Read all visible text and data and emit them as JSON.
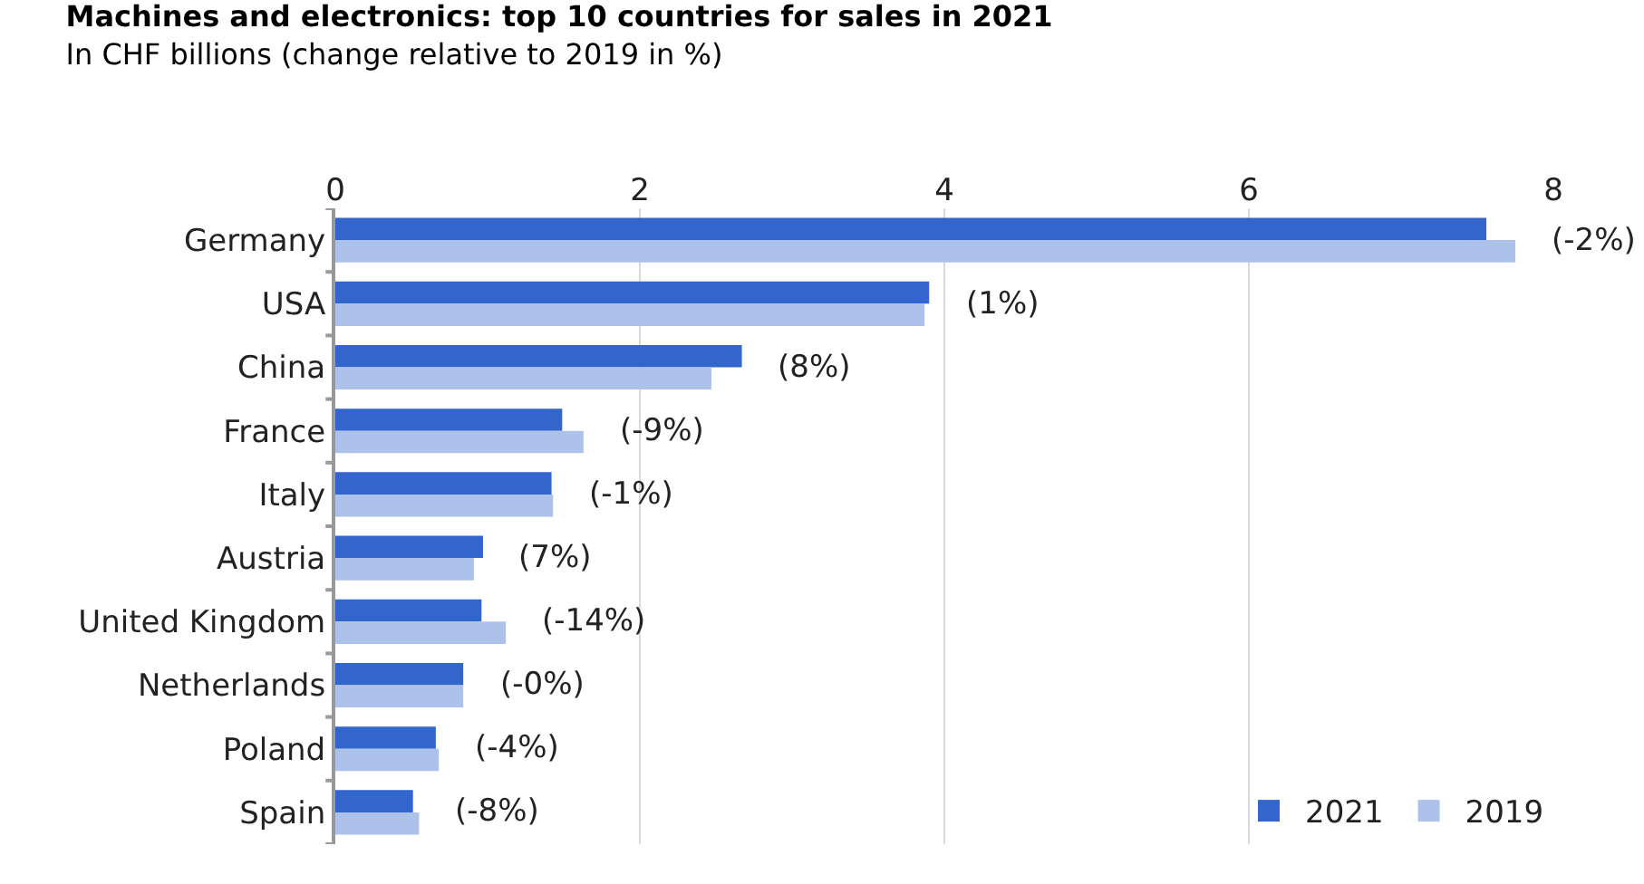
{
  "chart_data": {
    "type": "bar",
    "orientation": "horizontal",
    "title": "Machines and electronics: top 10 countries for sales in 2021",
    "subtitle": "In CHF billions (change relative to 2019 in %)",
    "categories": [
      "Germany",
      "USA",
      "China",
      "France",
      "Italy",
      "Austria",
      "United Kingdom",
      "Netherlands",
      "Poland",
      "Spain"
    ],
    "series": [
      {
        "name": "2021",
        "color": "#3366cc",
        "values": [
          7.56,
          3.9,
          2.67,
          1.49,
          1.42,
          0.97,
          0.96,
          0.84,
          0.66,
          0.51
        ]
      },
      {
        "name": "2019",
        "color": "#adc2eb",
        "values": [
          7.75,
          3.87,
          2.47,
          1.63,
          1.43,
          0.91,
          1.12,
          0.84,
          0.68,
          0.55
        ]
      }
    ],
    "xlim": [
      0,
      8
    ],
    "xticks": [
      0,
      2,
      4,
      6,
      8
    ],
    "grid": "x",
    "legend": "bottom right",
    "annotations": [
      {
        "text": "(-2%)",
        "x": 7.75,
        "y": "Germany"
      },
      {
        "text": "(1%)",
        "x": 3.9,
        "y": "USA"
      },
      {
        "text": "(8%)",
        "x": 2.67,
        "y": "China"
      },
      {
        "text": "(-9%)",
        "x": 1.63,
        "y": "France"
      },
      {
        "text": "(-1%)",
        "x": 1.43,
        "y": "Italy"
      },
      {
        "text": "(7%)",
        "x": 0.97,
        "y": "Austria"
      },
      {
        "text": "(-14%)",
        "x": 1.12,
        "y": "United Kingdom"
      },
      {
        "text": "(-0%)",
        "x": 0.84,
        "y": "Netherlands"
      },
      {
        "text": "(-4%)",
        "x": 0.68,
        "y": "Poland"
      },
      {
        "text": "(-8%)",
        "x": 0.55,
        "y": "Spain"
      }
    ]
  }
}
